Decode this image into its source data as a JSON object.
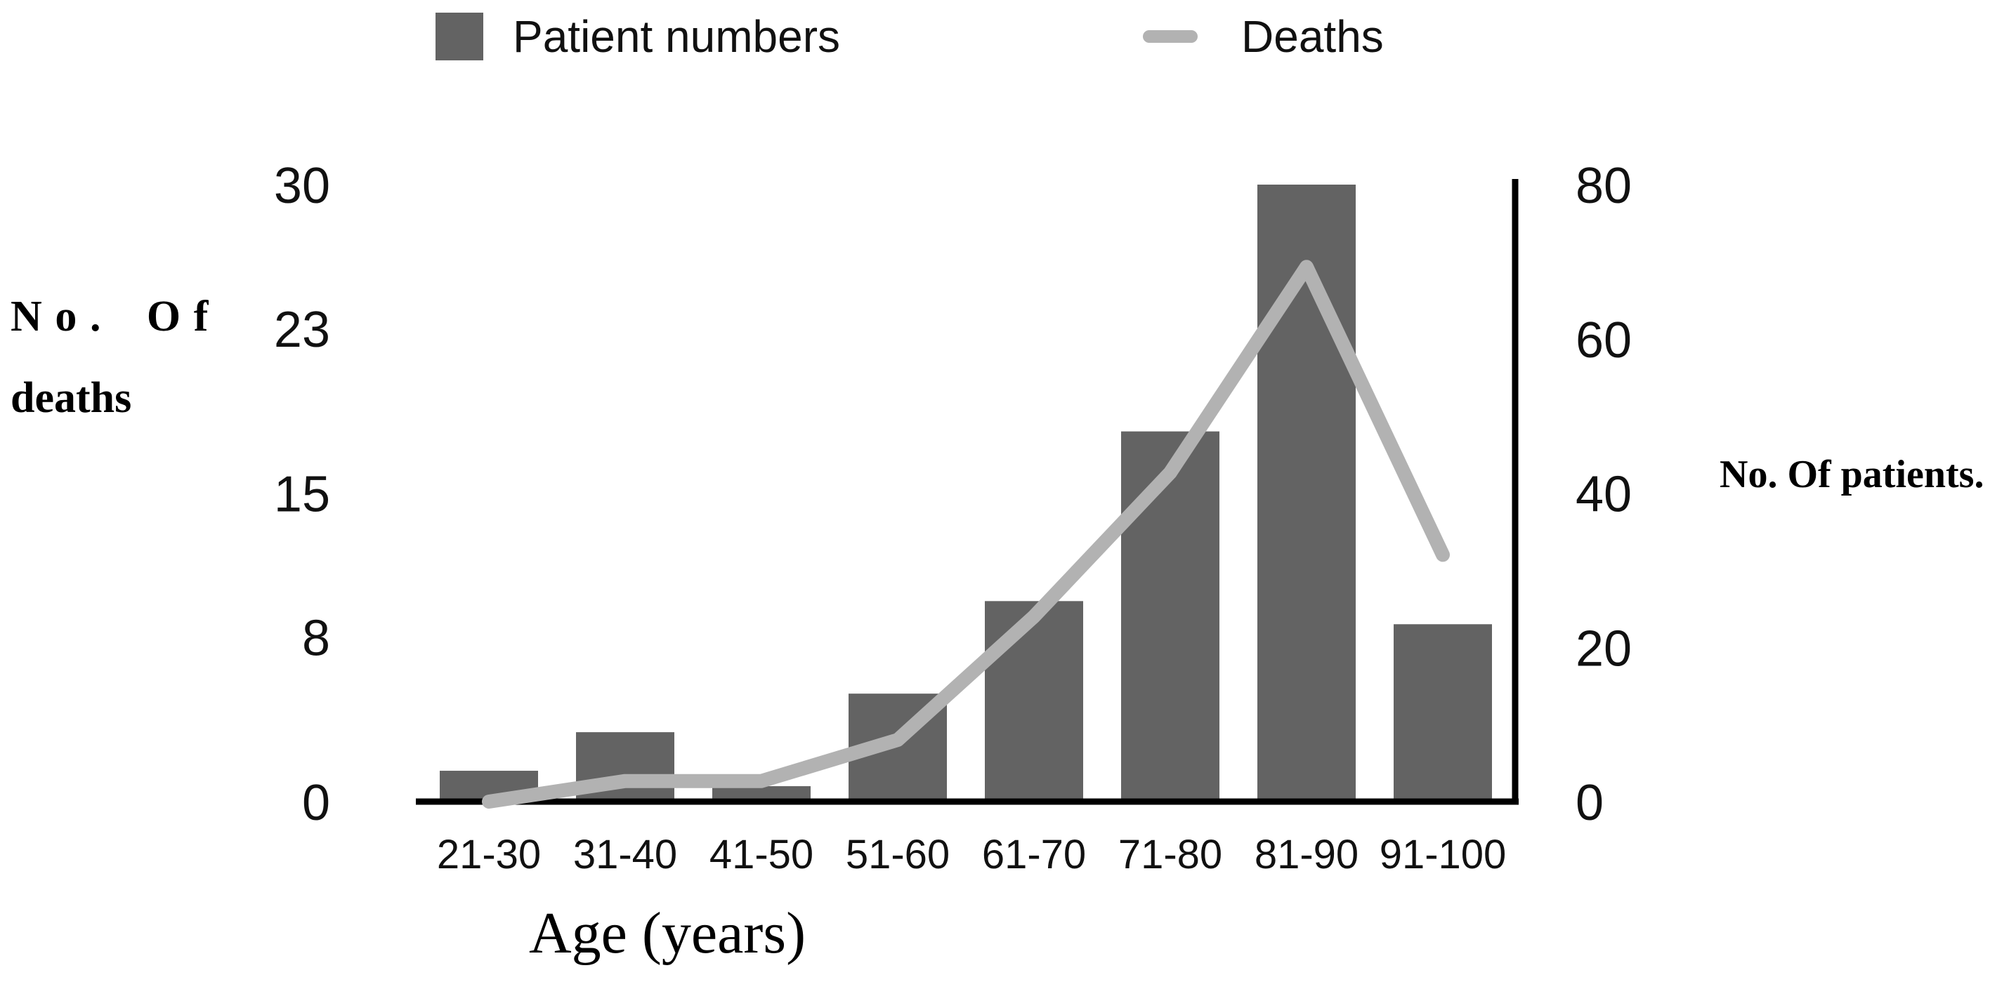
{
  "legend": {
    "items": [
      {
        "label": "Patient numbers",
        "swatch": "square",
        "color": "#636363"
      },
      {
        "label": "Deaths",
        "swatch": "line",
        "color": "#b2b2b2"
      }
    ]
  },
  "left_axis_title": {
    "words_line1": [
      "No.",
      "Of"
    ],
    "line2": "deaths"
  },
  "right_axis_title": "No. Of patients.",
  "x_axis_title": "Age (years)",
  "chart_data": {
    "type": "bar",
    "title": "",
    "categories": [
      "21-30",
      "31-40",
      "41-50",
      "51-60",
      "61-70",
      "71-80",
      "81-90",
      "91-100"
    ],
    "series": [
      {
        "name": "Patient numbers",
        "type": "bar",
        "axis": "right",
        "color": "#636363",
        "values": [
          4,
          9,
          2,
          14,
          26,
          48,
          80,
          23
        ]
      },
      {
        "name": "Deaths",
        "type": "line",
        "axis": "left",
        "color": "#b2b2b2",
        "values": [
          0,
          1,
          1,
          3,
          9,
          16,
          26,
          12
        ]
      }
    ],
    "left_axis": {
      "label": "No. Of deaths",
      "ticks": [
        0,
        8,
        15,
        23,
        30
      ],
      "range": [
        0,
        30
      ]
    },
    "right_axis": {
      "label": "No. Of patients.",
      "ticks": [
        0,
        20,
        40,
        60,
        80
      ],
      "range": [
        0,
        80
      ]
    },
    "xlabel": "Age (years)",
    "ylabel_left": "No. Of deaths",
    "ylabel_right": "No. Of patients.",
    "grid": false,
    "legend_position": "top",
    "axis_color": "#000000",
    "text_color": "#111111"
  }
}
